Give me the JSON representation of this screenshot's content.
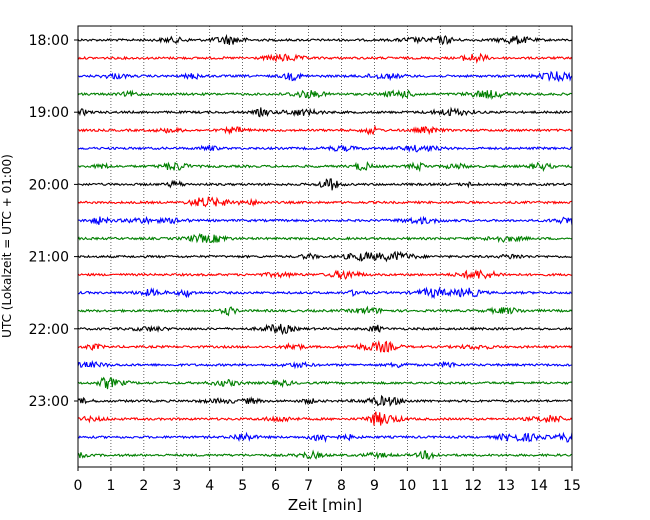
{
  "chart_data": {
    "type": "line",
    "subtype": "helicorder",
    "xlabel": "Zeit  [min]",
    "ylabel": "UTC (Lokalzeit = UTC + 01:00)",
    "xlim": [
      0,
      15
    ],
    "x_ticks": [
      "0",
      "1",
      "2",
      "3",
      "4",
      "5",
      "6",
      "7",
      "8",
      "9",
      "10",
      "11",
      "12",
      "13",
      "14",
      "15"
    ],
    "y_ticks": [
      "18:00",
      "19:00",
      "20:00",
      "21:00",
      "22:00",
      "23:00"
    ],
    "grid": "vertical dotted lines at each minute",
    "trace_count": 24,
    "trace_start_times": [
      "18:00",
      "18:15",
      "18:30",
      "18:45",
      "19:00",
      "19:15",
      "19:30",
      "19:45",
      "20:00",
      "20:15",
      "20:30",
      "20:45",
      "21:00",
      "21:15",
      "21:30",
      "21:45",
      "22:00",
      "22:15",
      "22:30",
      "22:45",
      "23:00",
      "23:15",
      "23:30",
      "23:45"
    ],
    "trace_color_cycle": [
      "#000000",
      "#ff0000",
      "#0000ff",
      "#008000"
    ]
  }
}
